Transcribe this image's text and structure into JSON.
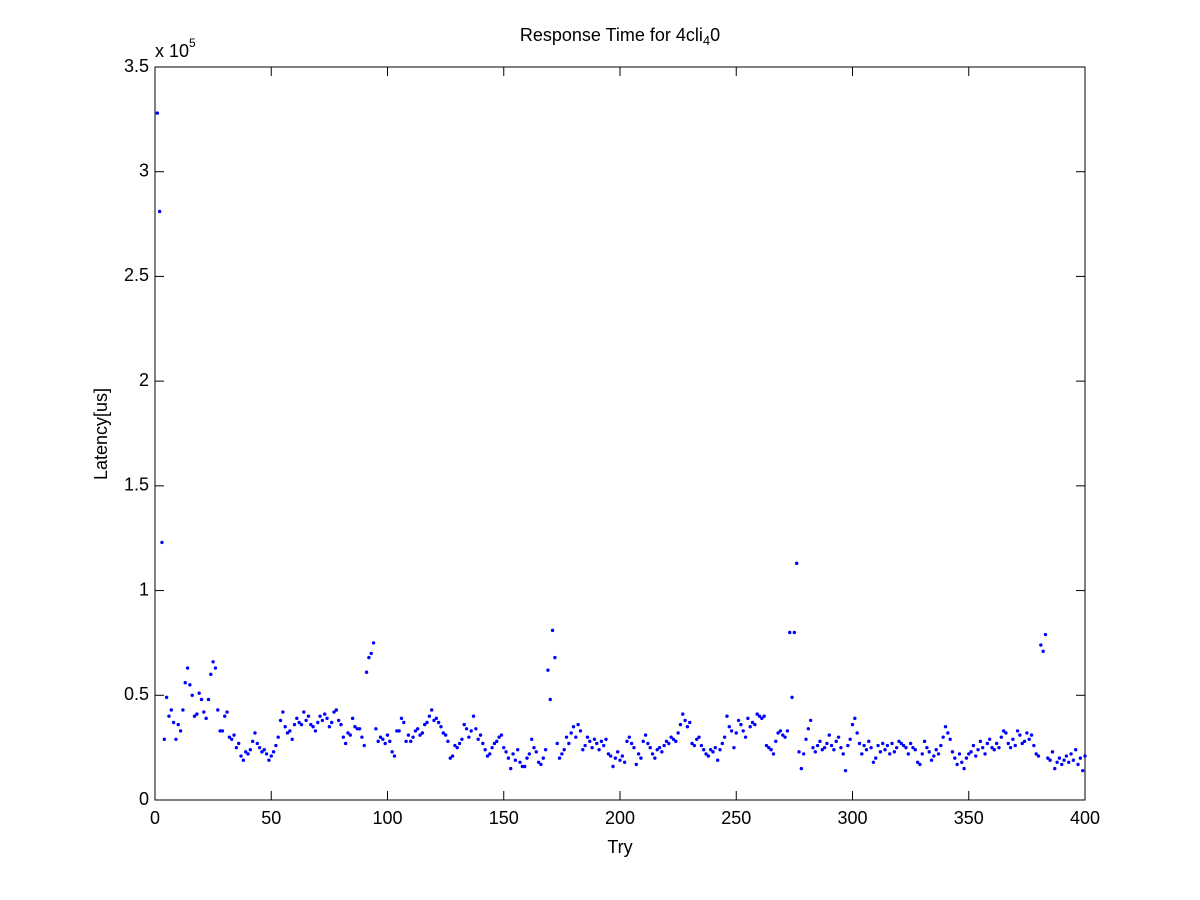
{
  "chart_data": {
    "type": "scatter",
    "title": "Response Time for 4cli",
    "title_subscript": "4",
    "title_suffix": "0",
    "x_label": "Try",
    "y_label": "Latency[us]",
    "y_multiplier": "x 10",
    "y_multiplier_exponent": "5",
    "color": "#0000ff",
    "xlim": [
      0,
      400
    ],
    "xticks": [
      0,
      50,
      100,
      150,
      200,
      250,
      300,
      350,
      400
    ],
    "ylim": [
      0,
      3.5
    ],
    "yticks": [
      0,
      0.5,
      1,
      1.5,
      2,
      2.5,
      3,
      3.5
    ],
    "x": [
      1,
      2,
      3,
      4,
      5,
      6,
      7,
      8,
      9,
      10,
      11,
      12,
      13,
      14,
      15,
      16,
      17,
      18,
      19,
      20,
      21,
      22,
      23,
      24,
      25,
      26,
      27,
      28,
      29,
      30,
      31,
      32,
      33,
      34,
      35,
      36,
      37,
      38,
      39,
      40,
      41,
      42,
      43,
      44,
      45,
      46,
      47,
      48,
      49,
      50,
      51,
      52,
      53,
      54,
      55,
      56,
      57,
      58,
      59,
      60,
      61,
      62,
      63,
      64,
      65,
      66,
      67,
      68,
      69,
      70,
      71,
      72,
      73,
      74,
      75,
      76,
      77,
      78,
      79,
      80,
      81,
      82,
      83,
      84,
      85,
      86,
      87,
      88,
      89,
      90,
      91,
      92,
      93,
      94,
      95,
      96,
      97,
      98,
      99,
      100,
      101,
      102,
      103,
      104,
      105,
      106,
      107,
      108,
      109,
      110,
      111,
      112,
      113,
      114,
      115,
      116,
      117,
      118,
      119,
      120,
      121,
      122,
      123,
      124,
      125,
      126,
      127,
      128,
      129,
      130,
      131,
      132,
      133,
      134,
      135,
      136,
      137,
      138,
      139,
      140,
      141,
      142,
      143,
      144,
      145,
      146,
      147,
      148,
      149,
      150,
      151,
      152,
      153,
      154,
      155,
      156,
      157,
      158,
      159,
      160,
      161,
      162,
      163,
      164,
      165,
      166,
      167,
      168,
      169,
      170,
      171,
      172,
      173,
      174,
      175,
      176,
      177,
      178,
      179,
      180,
      181,
      182,
      183,
      184,
      185,
      186,
      187,
      188,
      189,
      190,
      191,
      192,
      193,
      194,
      195,
      196,
      197,
      198,
      199,
      200,
      201,
      202,
      203,
      204,
      205,
      206,
      207,
      208,
      209,
      210,
      211,
      212,
      213,
      214,
      215,
      216,
      217,
      218,
      219,
      220,
      221,
      222,
      223,
      224,
      225,
      226,
      227,
      228,
      229,
      230,
      231,
      232,
      233,
      234,
      235,
      236,
      237,
      238,
      239,
      240,
      241,
      242,
      243,
      244,
      245,
      246,
      247,
      248,
      249,
      250,
      251,
      252,
      253,
      254,
      255,
      256,
      257,
      258,
      259,
      260,
      261,
      262,
      263,
      264,
      265,
      266,
      267,
      268,
      269,
      270,
      271,
      272,
      273,
      274,
      275,
      276,
      277,
      278,
      279,
      280,
      281,
      282,
      283,
      284,
      285,
      286,
      287,
      288,
      289,
      290,
      291,
      292,
      293,
      294,
      295,
      296,
      297,
      298,
      299,
      300,
      301,
      302,
      303,
      304,
      305,
      306,
      307,
      308,
      309,
      310,
      311,
      312,
      313,
      314,
      315,
      316,
      317,
      318,
      319,
      320,
      321,
      322,
      323,
      324,
      325,
      326,
      327,
      328,
      329,
      330,
      331,
      332,
      333,
      334,
      335,
      336,
      337,
      338,
      339,
      340,
      341,
      342,
      343,
      344,
      345,
      346,
      347,
      348,
      349,
      350,
      351,
      352,
      353,
      354,
      355,
      356,
      357,
      358,
      359,
      360,
      361,
      362,
      363,
      364,
      365,
      366,
      367,
      368,
      369,
      370,
      371,
      372,
      373,
      374,
      375,
      376,
      377,
      378,
      379,
      380,
      381,
      382,
      383,
      384,
      385,
      386,
      387,
      388,
      389,
      390,
      391,
      392,
      393,
      394,
      395,
      396,
      397,
      398,
      399,
      400
    ],
    "values": [
      3.28,
      2.81,
      1.23,
      0.29,
      0.49,
      0.4,
      0.43,
      0.37,
      0.29,
      0.36,
      0.33,
      0.43,
      0.56,
      0.63,
      0.55,
      0.5,
      0.4,
      0.41,
      0.51,
      0.48,
      0.42,
      0.39,
      0.48,
      0.6,
      0.66,
      0.63,
      0.43,
      0.33,
      0.33,
      0.4,
      0.42,
      0.3,
      0.29,
      0.31,
      0.25,
      0.27,
      0.21,
      0.19,
      0.23,
      0.22,
      0.24,
      0.28,
      0.32,
      0.27,
      0.25,
      0.23,
      0.24,
      0.22,
      0.19,
      0.21,
      0.23,
      0.26,
      0.3,
      0.38,
      0.42,
      0.35,
      0.32,
      0.33,
      0.29,
      0.36,
      0.39,
      0.37,
      0.36,
      0.42,
      0.38,
      0.4,
      0.36,
      0.35,
      0.33,
      0.37,
      0.4,
      0.38,
      0.41,
      0.39,
      0.35,
      0.37,
      0.42,
      0.43,
      0.38,
      0.36,
      0.3,
      0.27,
      0.32,
      0.31,
      0.39,
      0.35,
      0.34,
      0.34,
      0.3,
      0.26,
      0.61,
      0.68,
      0.7,
      0.75,
      0.34,
      0.28,
      0.3,
      0.29,
      0.27,
      0.31,
      0.28,
      0.23,
      0.21,
      0.33,
      0.33,
      0.39,
      0.37,
      0.28,
      0.31,
      0.28,
      0.3,
      0.33,
      0.34,
      0.31,
      0.32,
      0.36,
      0.37,
      0.4,
      0.43,
      0.38,
      0.39,
      0.37,
      0.35,
      0.32,
      0.31,
      0.28,
      0.2,
      0.21,
      0.26,
      0.25,
      0.27,
      0.29,
      0.36,
      0.34,
      0.3,
      0.33,
      0.4,
      0.34,
      0.29,
      0.31,
      0.27,
      0.24,
      0.21,
      0.22,
      0.25,
      0.27,
      0.28,
      0.3,
      0.31,
      0.25,
      0.23,
      0.2,
      0.15,
      0.22,
      0.19,
      0.24,
      0.18,
      0.16,
      0.16,
      0.2,
      0.22,
      0.29,
      0.25,
      0.23,
      0.18,
      0.17,
      0.2,
      0.24,
      0.62,
      0.48,
      0.81,
      0.68,
      0.27,
      0.2,
      0.22,
      0.24,
      0.3,
      0.27,
      0.32,
      0.35,
      0.3,
      0.36,
      0.33,
      0.24,
      0.26,
      0.3,
      0.28,
      0.25,
      0.29,
      0.27,
      0.24,
      0.28,
      0.26,
      0.29,
      0.22,
      0.21,
      0.16,
      0.2,
      0.23,
      0.19,
      0.21,
      0.18,
      0.28,
      0.3,
      0.27,
      0.25,
      0.17,
      0.22,
      0.2,
      0.28,
      0.31,
      0.27,
      0.25,
      0.22,
      0.2,
      0.24,
      0.25,
      0.23,
      0.26,
      0.28,
      0.27,
      0.3,
      0.29,
      0.28,
      0.32,
      0.36,
      0.41,
      0.38,
      0.35,
      0.37,
      0.27,
      0.26,
      0.29,
      0.3,
      0.26,
      0.24,
      0.22,
      0.21,
      0.24,
      0.23,
      0.25,
      0.19,
      0.24,
      0.27,
      0.3,
      0.4,
      0.35,
      0.33,
      0.25,
      0.32,
      0.38,
      0.36,
      0.33,
      0.3,
      0.39,
      0.35,
      0.37,
      0.36,
      0.41,
      0.4,
      0.39,
      0.4,
      0.26,
      0.25,
      0.24,
      0.22,
      0.28,
      0.32,
      0.33,
      0.31,
      0.3,
      0.33,
      0.8,
      0.49,
      0.8,
      1.13,
      0.23,
      0.15,
      0.22,
      0.29,
      0.34,
      0.38,
      0.25,
      0.23,
      0.26,
      0.28,
      0.24,
      0.25,
      0.27,
      0.31,
      0.26,
      0.24,
      0.28,
      0.3,
      0.25,
      0.22,
      0.14,
      0.26,
      0.29,
      0.36,
      0.39,
      0.32,
      0.27,
      0.22,
      0.26,
      0.24,
      0.28,
      0.25,
      0.18,
      0.2,
      0.26,
      0.23,
      0.27,
      0.24,
      0.26,
      0.22,
      0.27,
      0.23,
      0.25,
      0.28,
      0.27,
      0.26,
      0.25,
      0.22,
      0.27,
      0.25,
      0.24,
      0.18,
      0.17,
      0.22,
      0.28,
      0.25,
      0.23,
      0.19,
      0.21,
      0.24,
      0.22,
      0.26,
      0.3,
      0.35,
      0.32,
      0.29,
      0.23,
      0.2,
      0.17,
      0.22,
      0.18,
      0.15,
      0.2,
      0.22,
      0.23,
      0.26,
      0.21,
      0.24,
      0.28,
      0.25,
      0.22,
      0.27,
      0.29,
      0.25,
      0.24,
      0.27,
      0.25,
      0.3,
      0.33,
      0.32,
      0.27,
      0.25,
      0.29,
      0.26,
      0.33,
      0.31,
      0.27,
      0.28,
      0.32,
      0.29,
      0.31,
      0.26,
      0.22,
      0.21,
      0.74,
      0.71,
      0.79,
      0.2,
      0.19,
      0.23,
      0.15,
      0.18,
      0.2,
      0.17,
      0.19,
      0.21,
      0.18,
      0.22,
      0.19,
      0.24,
      0.17,
      0.2,
      0.14,
      0.21
    ]
  }
}
